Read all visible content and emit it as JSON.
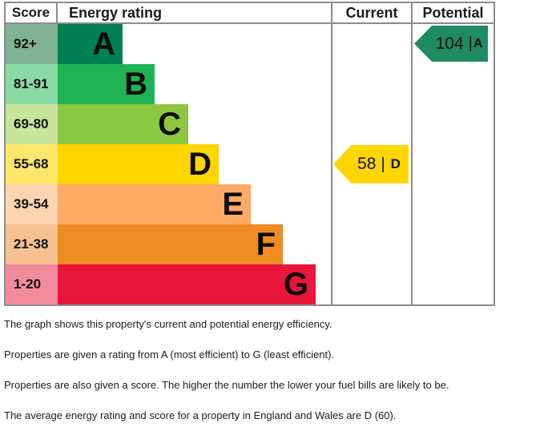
{
  "table": {
    "headers": [
      "Score",
      "Energy rating",
      "Current",
      "Potential"
    ]
  },
  "bands": [
    {
      "score": "92+",
      "letter": "A",
      "bar_color": "#008054",
      "cell_color": "#7fb294"
    },
    {
      "score": "81-91",
      "letter": "B",
      "bar_color": "#1fb356",
      "cell_color": "#8ad9a2"
    },
    {
      "score": "69-80",
      "letter": "C",
      "bar_color": "#8dc63f",
      "cell_color": "#c6e49a"
    },
    {
      "score": "55-68",
      "letter": "D",
      "bar_color": "#ffd500",
      "cell_color": "#ffe76b"
    },
    {
      "score": "39-54",
      "letter": "E",
      "bar_color": "#fcaa65",
      "cell_color": "#fdd5af"
    },
    {
      "score": "21-38",
      "letter": "F",
      "bar_color": "#ef8b23",
      "cell_color": "#f6c091"
    },
    {
      "score": "1-20",
      "letter": "G",
      "bar_color": "#e9153b",
      "cell_color": "#f18a9b"
    }
  ],
  "current": {
    "value": "58",
    "separator": "|",
    "letter": "D",
    "color": "#ffd500"
  },
  "potential": {
    "value": "104",
    "separator": "|",
    "letter": "A",
    "color": "#1e8b62"
  },
  "footnotes": [
    "The graph shows this property's current and potential energy efficiency.",
    "Properties are given a rating from A (most efficient) to G (least efficient).",
    "Properties are also given a score. The higher the number the lower your fuel bills are likely to be.",
    "The average energy rating and score for a property in England and Wales are D (60)."
  ],
  "chart_data": {
    "type": "bar",
    "title": "Energy rating",
    "categories": [
      "A",
      "B",
      "C",
      "D",
      "E",
      "F",
      "G"
    ],
    "score_ranges": [
      "92+",
      "81-91",
      "69-80",
      "55-68",
      "39-54",
      "21-38",
      "1-20"
    ],
    "band_colors": [
      "#008054",
      "#1fb356",
      "#8dc63f",
      "#ffd500",
      "#fcaa65",
      "#ef8b23",
      "#e9153b"
    ],
    "values": [
      1,
      2,
      3,
      4,
      5,
      6,
      7
    ],
    "markers": [
      {
        "name": "Current",
        "score": 58,
        "rating": "D"
      },
      {
        "name": "Potential",
        "score": 104,
        "rating": "A"
      }
    ],
    "xlabel": "",
    "ylabel": "Score",
    "legend_position": "none",
    "grid": false
  }
}
